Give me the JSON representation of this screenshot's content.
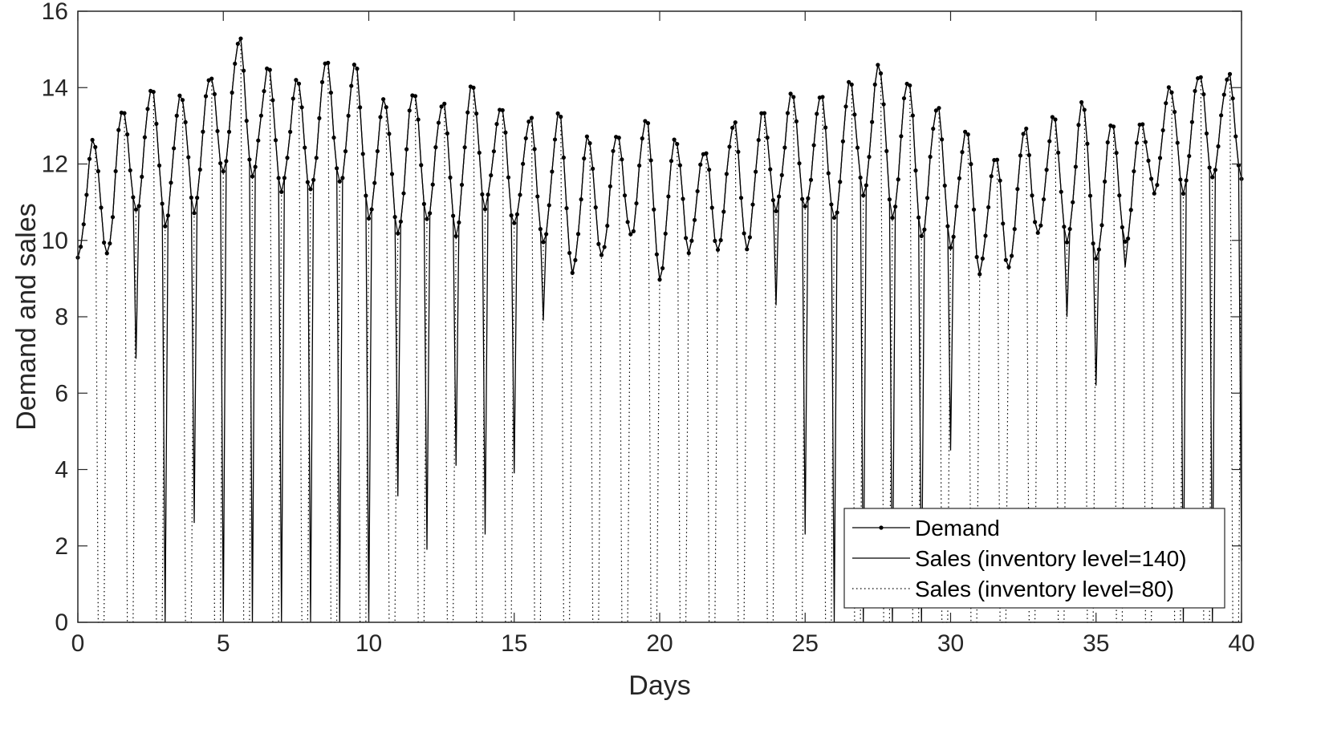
{
  "chart_data": {
    "type": "line",
    "xlabel": "Days",
    "ylabel": "Demand and sales",
    "xlim": [
      0,
      40
    ],
    "ylim": [
      0,
      16
    ],
    "xticks": [
      "0",
      "5",
      "10",
      "15",
      "20",
      "25",
      "30",
      "35",
      "40"
    ],
    "yticks": [
      "0",
      "2",
      "4",
      "6",
      "8",
      "10",
      "12",
      "14",
      "16"
    ],
    "grid": false,
    "box": true,
    "legend_position": "bottom-right",
    "colors": {
      "line": "#000000",
      "axis": "#262626",
      "background": "#ffffff"
    },
    "x_step": 0.1,
    "day_peaks": [
      12.6,
      13.45,
      14.0,
      13.85,
      14.35,
      15.3,
      14.5,
      14.2,
      14.7,
      14.6,
      13.7,
      13.95,
      13.65,
      14.1,
      13.5,
      13.2,
      13.3,
      12.7,
      12.8,
      13.2,
      12.7,
      12.4,
      13.1,
      13.35,
      13.85,
      13.8,
      14.15,
      14.6,
      14.25,
      13.55,
      12.9,
      12.2,
      12.9,
      13.2,
      13.6,
      13.1,
      13.1,
      14.05,
      14.4,
      14.35
    ],
    "day_troughs": [
      9.55,
      9.6,
      10.75,
      10.45,
      10.8,
      11.8,
      11.7,
      11.3,
      11.25,
      11.45,
      10.6,
      10.2,
      10.55,
      10.2,
      10.9,
      10.4,
      9.9,
      9.15,
      9.55,
      10.1,
      9.05,
      9.75,
      9.75,
      9.8,
      10.8,
      10.8,
      10.5,
      11.2,
      10.6,
      10.1,
      9.9,
      9.2,
      9.25,
      10.15,
      9.95,
      9.45,
      9.9,
      11.3,
      11.3,
      11.65
    ],
    "series": [
      {
        "name": "Demand",
        "style": "solid-dot",
        "note": "hourly demand: for each day d, trough value at start of day rising to the day's peak around hour 14, then declining toward the next day's trough"
      },
      {
        "name": "Sales (inventory level=140)",
        "style": "solid",
        "stockout_days": [
          2,
          3,
          4,
          5,
          6,
          7,
          8,
          9,
          10,
          11,
          12,
          13,
          14,
          15,
          16,
          17,
          24,
          25,
          26,
          27,
          28,
          29,
          30,
          34,
          35,
          36,
          38,
          39,
          40
        ],
        "min_at_restock": [
          6.9,
          0,
          2.6,
          0,
          0,
          0,
          0,
          0,
          0,
          3.3,
          1.9,
          4.1,
          2.3,
          3.9,
          7.9,
          9.1,
          8.3,
          2.3,
          0,
          0,
          0,
          0,
          4.5,
          8.0,
          6.2,
          9.3,
          0,
          0,
          1.6
        ]
      },
      {
        "name": "Sales (inventory level=80)",
        "style": "dotted",
        "note": "sells demand until stock of 80 runs out late in each day, dropping to 0 until restock"
      }
    ]
  },
  "legend": {
    "items": [
      {
        "label": "Demand"
      },
      {
        "label": "Sales (inventory level=140)"
      },
      {
        "label": "Sales (inventory level=80)"
      }
    ]
  }
}
